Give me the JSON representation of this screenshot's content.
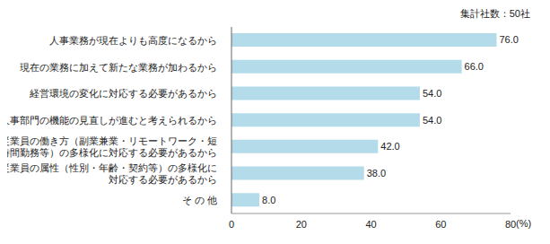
{
  "chart_data": {
    "type": "bar",
    "orientation": "horizontal",
    "subtitle": "集計社数：50社",
    "x_label": "(%)",
    "categories": [
      "人事業務が現在よりも高度になるから",
      "現在の業務に加えて新たな業務が加わるから",
      "経営環境の変化に対応する必要があるから",
      "人事部門の機能の見直しが進むと考えられるから",
      "従業員の働き方（副業兼業・リモートワーク・短時間勤務等）の多様化に対応する必要があるから",
      "従業員の属性（性別・年齢・契約等）の多様化に対応する必要があるから",
      "そ の 他"
    ],
    "values": [
      76,
      66,
      54,
      54,
      42,
      38,
      8
    ],
    "value_labels": [
      "76.0",
      "66.0",
      "54.0",
      "54.0",
      "42.0",
      "38.0",
      "8.0"
    ],
    "color": "#b4dbea",
    "xlim": [
      0,
      80
    ],
    "xticks": [
      0,
      20,
      40,
      60,
      80
    ],
    "grid": false,
    "data_labels": true
  }
}
